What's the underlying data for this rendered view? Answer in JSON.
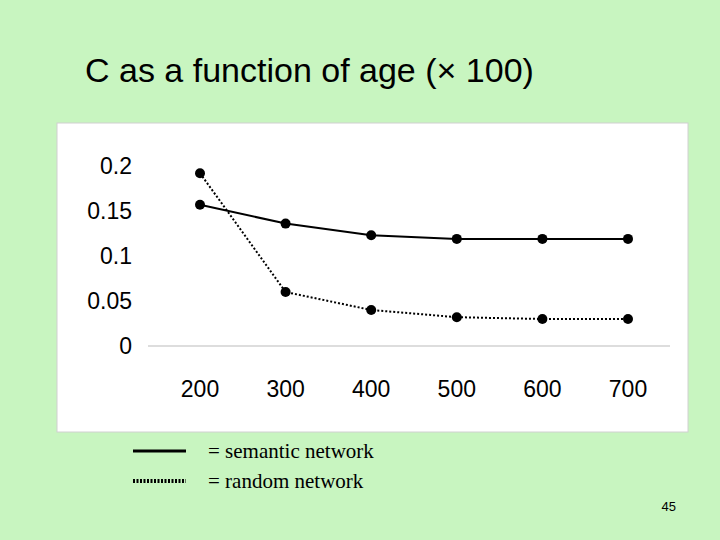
{
  "chart_data": {
    "type": "line",
    "title": "C as a function of age (× 100)",
    "categories": [
      "200",
      "300",
      "400",
      "500",
      "600",
      "700"
    ],
    "series": [
      {
        "name": "= semantic network",
        "color": "#000000",
        "line_style": "solid",
        "marker": "circle",
        "values": [
          0.157,
          0.136,
          0.123,
          0.119,
          0.119,
          0.119
        ]
      },
      {
        "name": "= random network",
        "color": "#000000",
        "line_style": "dotted",
        "marker": "circle",
        "values": [
          0.192,
          0.06,
          0.04,
          0.032,
          0.03,
          0.03
        ]
      }
    ],
    "ylim": [
      0,
      0.2
    ],
    "yticks": [
      0,
      0.05,
      0.1,
      0.15,
      0.2
    ],
    "grid": false,
    "legend": "bottom"
  },
  "slide": {
    "page_number": "45"
  }
}
